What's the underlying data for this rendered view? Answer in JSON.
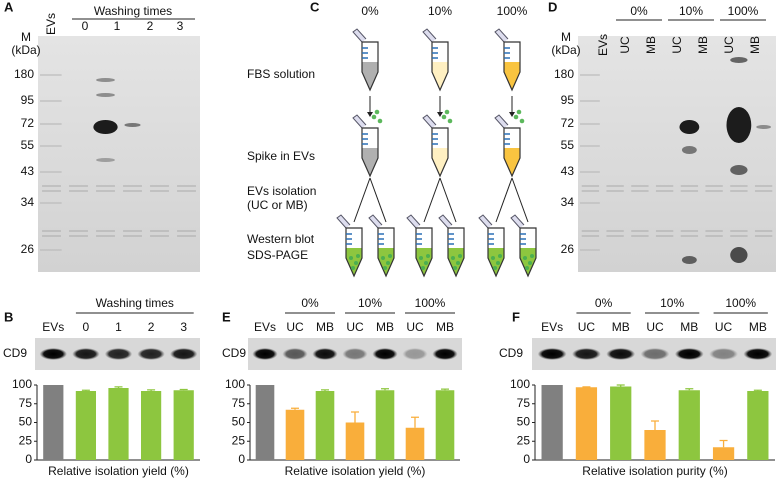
{
  "panel_letters": [
    "A",
    "B",
    "C",
    "D",
    "E",
    "F"
  ],
  "gel_a": {
    "marker_title": [
      "M",
      "(kDa)"
    ],
    "lanes": [
      "EVs",
      "0",
      "1",
      "2",
      "3"
    ],
    "group": "Washing times",
    "markers": [
      180,
      95,
      72,
      55,
      43,
      34,
      26
    ]
  },
  "diagram": {
    "percents": [
      "0%",
      "10%",
      "100%"
    ],
    "steps": [
      "FBS solution",
      "Spike in EVs",
      "EVs isolation",
      "(UC or MB)",
      "Western blot",
      "SDS-PAGE"
    ]
  },
  "gel_d": {
    "marker_title": [
      "M",
      "(kDa)"
    ],
    "lanes": [
      "EVs",
      "UC",
      "MB",
      "UC",
      "MB",
      "UC",
      "MB"
    ],
    "groups": [
      "0%",
      "10%",
      "100%"
    ],
    "markers": [
      180,
      95,
      72,
      55,
      43,
      34,
      26
    ]
  },
  "chart_data": [
    {
      "type": "bar",
      "blot": "CD9",
      "groups": [
        "Washing times"
      ],
      "categories": [
        "EVs",
        "0",
        "1",
        "2",
        "3"
      ],
      "values": [
        100,
        92,
        96,
        92,
        93
      ],
      "errors": [
        0,
        1,
        1.5,
        1.5,
        1
      ],
      "colors": [
        "#808080",
        "#8dc63f",
        "#8dc63f",
        "#8dc63f",
        "#8dc63f"
      ],
      "ylim": [
        0,
        100
      ],
      "yticks": [
        0,
        25,
        50,
        75,
        100
      ],
      "xlabel": "Relative isolation yield (%)"
    },
    {
      "type": "bar",
      "blot": "CD9",
      "groups": [
        "0%",
        "10%",
        "100%"
      ],
      "categories": [
        "EVs",
        "UC",
        "MB",
        "UC",
        "MB",
        "UC",
        "MB"
      ],
      "values": [
        100,
        67,
        92,
        50,
        93,
        43,
        93
      ],
      "errors": [
        0,
        2,
        1.5,
        14,
        2,
        14,
        1.5
      ],
      "colors": [
        "#808080",
        "#f9ae3b",
        "#8dc63f",
        "#f9ae3b",
        "#8dc63f",
        "#f9ae3b",
        "#8dc63f"
      ],
      "ylim": [
        0,
        100
      ],
      "yticks": [
        0,
        25,
        50,
        75,
        100
      ],
      "xlabel": "Relative isolation yield (%)"
    },
    {
      "type": "bar",
      "blot": "CD9",
      "groups": [
        "0%",
        "10%",
        "100%"
      ],
      "categories": [
        "EVs",
        "UC",
        "MB",
        "UC",
        "MB",
        "UC",
        "MB"
      ],
      "values": [
        100,
        97,
        98,
        40,
        93,
        17,
        92
      ],
      "errors": [
        0,
        0.5,
        2,
        12,
        2,
        9,
        1
      ],
      "colors": [
        "#808080",
        "#f9ae3b",
        "#8dc63f",
        "#f9ae3b",
        "#8dc63f",
        "#f9ae3b",
        "#8dc63f"
      ],
      "ylim": [
        0,
        100
      ],
      "yticks": [
        0,
        25,
        50,
        75,
        100
      ],
      "xlabel": "Relative isolation purity (%)"
    }
  ]
}
